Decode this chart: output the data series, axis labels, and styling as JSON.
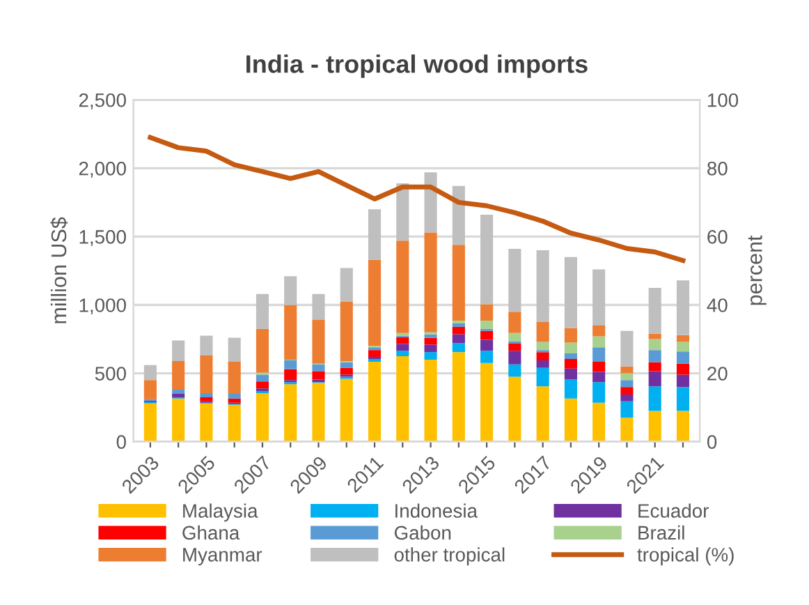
{
  "chart_data": {
    "type": "bar",
    "stacked": true,
    "title": "India - tropical wood imports",
    "ylabel": "million US$",
    "y2label": "percent",
    "categories": [
      "2003",
      null,
      "2005",
      null,
      "2007",
      null,
      "2009",
      null,
      "2011",
      null,
      "2013",
      null,
      "2015",
      null,
      "2017",
      null,
      "2019",
      null,
      "2021",
      null
    ],
    "series": [
      {
        "name": "Malaysia",
        "color": "#ffc000",
        "values": [
          280,
          315,
          280,
          270,
          355,
          420,
          430,
          460,
          585,
          625,
          600,
          655,
          575,
          475,
          405,
          315,
          285,
          175,
          225,
          225
        ]
      },
      {
        "name": "Indonesia",
        "color": "#00b0f0",
        "values": [
          10,
          10,
          5,
          5,
          15,
          15,
          5,
          15,
          20,
          40,
          55,
          65,
          90,
          90,
          135,
          140,
          150,
          120,
          180,
          175
        ]
      },
      {
        "name": "Ecuador",
        "color": "#7030a0",
        "values": [
          10,
          25,
          10,
          10,
          20,
          15,
          20,
          15,
          15,
          50,
          55,
          65,
          80,
          100,
          55,
          80,
          75,
          50,
          110,
          90
        ]
      },
      {
        "name": "Ghana",
        "color": "#ff0000",
        "values": [
          0,
          0,
          30,
          30,
          50,
          80,
          60,
          50,
          50,
          50,
          50,
          55,
          65,
          55,
          60,
          70,
          75,
          55,
          65,
          80
        ]
      },
      {
        "name": "Gabon",
        "color": "#5b9bd5",
        "values": [
          10,
          30,
          30,
          35,
          50,
          65,
          50,
          40,
          20,
          10,
          25,
          25,
          15,
          15,
          15,
          40,
          105,
          50,
          90,
          90
        ]
      },
      {
        "name": "Brazil",
        "color": "#a9d18e",
        "values": [
          0,
          0,
          0,
          0,
          15,
          5,
          5,
          10,
          10,
          20,
          15,
          20,
          60,
          60,
          60,
          80,
          80,
          50,
          80,
          70
        ]
      },
      {
        "name": "Myanmar",
        "color": "#ed7d31",
        "values": [
          140,
          210,
          275,
          235,
          320,
          400,
          320,
          435,
          630,
          675,
          730,
          555,
          120,
          155,
          145,
          105,
          80,
          50,
          40,
          50
        ]
      },
      {
        "name": "other tropical",
        "color": "#bfbfbf",
        "values": [
          110,
          150,
          145,
          175,
          255,
          210,
          190,
          245,
          370,
          420,
          440,
          430,
          655,
          460,
          525,
          520,
          410,
          260,
          335,
          400
        ]
      },
      {
        "name": "tropical (%)",
        "type": "line",
        "axis": "y2",
        "color": "#c55a11",
        "values": [
          89,
          86,
          85,
          81,
          79,
          77,
          79,
          75,
          71,
          74.5,
          74.5,
          70,
          69,
          67,
          64.5,
          61,
          59,
          56.5,
          55.5,
          53
        ]
      }
    ],
    "ylim": [
      0,
      2500
    ],
    "yticks": [
      0,
      {
        "value": 500,
        "label": "500"
      },
      {
        "value": 1000,
        "label": "1,000"
      },
      {
        "value": 1500,
        "label": "1,500"
      },
      {
        "value": 2000,
        "label": "2,000"
      },
      {
        "value": 2500,
        "label": "2,500"
      }
    ],
    "y2lim": [
      0,
      100
    ],
    "y2ticks": [
      0,
      20,
      40,
      60,
      80,
      100
    ],
    "grid": "y",
    "legend": "bottom",
    "marker": "none",
    "line_style": "solid"
  }
}
